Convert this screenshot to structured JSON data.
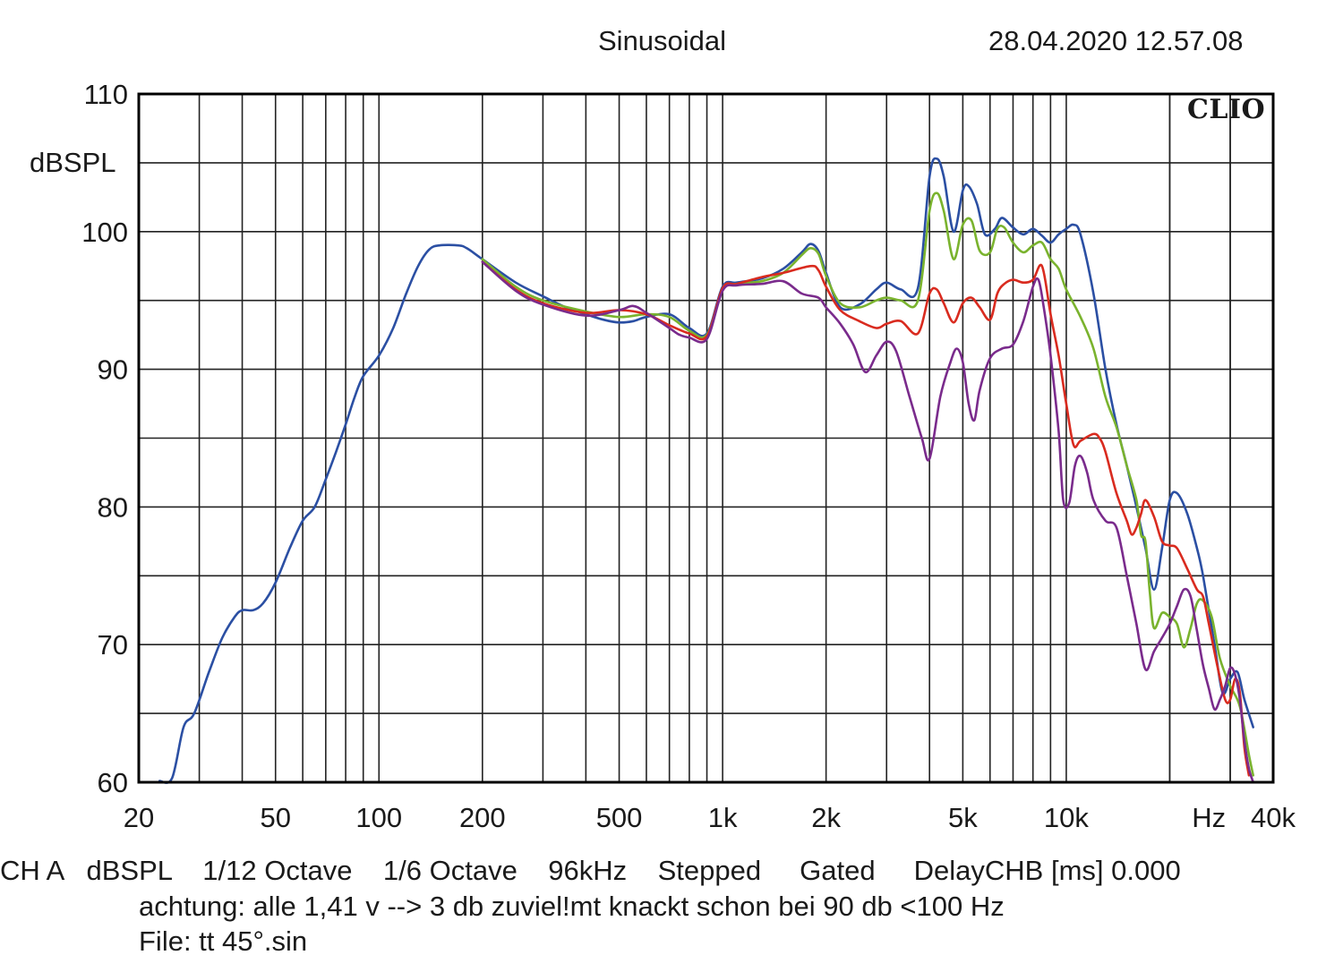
{
  "header": {
    "title": "Sinusoidal",
    "timestamp": "28.04.2020 12.57.08",
    "brand": "CLIO"
  },
  "footer": {
    "settings_line": "CH A   dBSPL    1/12 Octave    1/6 Octave    96kHz    Stepped     Gated     DelayCHB [ms] 0.000",
    "comment_line": "achtung: alle 1,41 v --> 3 db zuviel!mt knackt schon bei 90 db <100 Hz",
    "file_line": "File: tt 45°.sin"
  },
  "chart_data": {
    "type": "line",
    "xscale": "log",
    "xlim": [
      20,
      40000
    ],
    "ylim": [
      60,
      110
    ],
    "ylabel": "dBSPL",
    "xlabel": "Hz",
    "grid": true,
    "x_tick_labels": [
      {
        "value": 20,
        "label": "20"
      },
      {
        "value": 50,
        "label": "50"
      },
      {
        "value": 100,
        "label": "100"
      },
      {
        "value": 200,
        "label": "200"
      },
      {
        "value": 500,
        "label": "500"
      },
      {
        "value": 1000,
        "label": "1k"
      },
      {
        "value": 2000,
        "label": "2k"
      },
      {
        "value": 5000,
        "label": "5k"
      },
      {
        "value": 10000,
        "label": "10k"
      },
      {
        "value": 40000,
        "label": "40k"
      }
    ],
    "y_tick_labels": [
      "60",
      "70",
      "80",
      "90",
      "100",
      "110"
    ],
    "series": [
      {
        "color": "#2b4fa3",
        "points": [
          [
            23,
            60.1
          ],
          [
            25,
            60.3
          ],
          [
            27,
            64
          ],
          [
            29,
            65
          ],
          [
            32,
            68
          ],
          [
            35,
            70.5
          ],
          [
            38,
            72
          ],
          [
            40,
            72.5
          ],
          [
            43,
            72.5
          ],
          [
            46,
            73
          ],
          [
            50,
            74.5
          ],
          [
            55,
            77
          ],
          [
            60,
            79
          ],
          [
            65,
            80
          ],
          [
            70,
            82
          ],
          [
            75,
            84
          ],
          [
            80,
            86
          ],
          [
            85,
            88
          ],
          [
            90,
            89.5
          ],
          [
            100,
            91
          ],
          [
            110,
            93
          ],
          [
            120,
            95.5
          ],
          [
            130,
            97.5
          ],
          [
            140,
            98.7
          ],
          [
            150,
            99
          ],
          [
            170,
            99
          ],
          [
            180,
            98.8
          ],
          [
            200,
            98
          ],
          [
            250,
            96.3
          ],
          [
            300,
            95.3
          ],
          [
            350,
            94.5
          ],
          [
            400,
            94
          ],
          [
            450,
            93.6
          ],
          [
            500,
            93.4
          ],
          [
            550,
            93.5
          ],
          [
            600,
            93.8
          ],
          [
            700,
            94
          ],
          [
            800,
            93
          ],
          [
            900,
            92.6
          ],
          [
            1000,
            96
          ],
          [
            1100,
            96.3
          ],
          [
            1300,
            96.6
          ],
          [
            1500,
            97.3
          ],
          [
            1700,
            98.5
          ],
          [
            1800,
            99.1
          ],
          [
            1900,
            98.6
          ],
          [
            2000,
            97
          ],
          [
            2200,
            94.5
          ],
          [
            2500,
            94.7
          ],
          [
            2800,
            95.8
          ],
          [
            3000,
            96.3
          ],
          [
            3300,
            95.8
          ],
          [
            3700,
            95.9
          ],
          [
            4000,
            104
          ],
          [
            4200,
            105.3
          ],
          [
            4400,
            104
          ],
          [
            4700,
            100
          ],
          [
            5000,
            103
          ],
          [
            5200,
            103.3
          ],
          [
            5500,
            102
          ],
          [
            5800,
            99.8
          ],
          [
            6200,
            100.2
          ],
          [
            6500,
            101
          ],
          [
            7000,
            100.3
          ],
          [
            7500,
            99.8
          ],
          [
            8000,
            100.2
          ],
          [
            8500,
            99.7
          ],
          [
            9000,
            99.2
          ],
          [
            9500,
            99.8
          ],
          [
            10000,
            100.2
          ],
          [
            10500,
            100.5
          ],
          [
            11000,
            99.8
          ],
          [
            12000,
            95.5
          ],
          [
            13000,
            90
          ],
          [
            14000,
            86
          ],
          [
            15000,
            83
          ],
          [
            16000,
            80
          ],
          [
            17000,
            77
          ],
          [
            18000,
            74
          ],
          [
            19000,
            77
          ],
          [
            20000,
            80.5
          ],
          [
            21000,
            81
          ],
          [
            22500,
            79.5
          ],
          [
            24000,
            77
          ],
          [
            25000,
            75
          ],
          [
            27000,
            70
          ],
          [
            28500,
            66.5
          ],
          [
            30000,
            67.5
          ],
          [
            31500,
            68
          ],
          [
            33000,
            66
          ],
          [
            35000,
            64
          ]
        ]
      },
      {
        "color": "#7ab32e",
        "points": [
          [
            200,
            98
          ],
          [
            250,
            96
          ],
          [
            300,
            95
          ],
          [
            400,
            94.2
          ],
          [
            500,
            93.8
          ],
          [
            600,
            94
          ],
          [
            700,
            93.8
          ],
          [
            800,
            92.8
          ],
          [
            900,
            92.5
          ],
          [
            1000,
            95.8
          ],
          [
            1100,
            96.2
          ],
          [
            1300,
            96.4
          ],
          [
            1500,
            97
          ],
          [
            1700,
            98.3
          ],
          [
            1800,
            98.8
          ],
          [
            1900,
            98.4
          ],
          [
            2000,
            96.8
          ],
          [
            2200,
            94.8
          ],
          [
            2500,
            94.5
          ],
          [
            2800,
            95
          ],
          [
            3000,
            95.2
          ],
          [
            3300,
            95
          ],
          [
            3700,
            95
          ],
          [
            4000,
            101.5
          ],
          [
            4200,
            102.8
          ],
          [
            4400,
            101.5
          ],
          [
            4700,
            98
          ],
          [
            5000,
            100.5
          ],
          [
            5300,
            100.8
          ],
          [
            5600,
            98.6
          ],
          [
            6000,
            98.5
          ],
          [
            6300,
            100.2
          ],
          [
            6600,
            100.3
          ],
          [
            7000,
            99.2
          ],
          [
            7500,
            98.5
          ],
          [
            8000,
            99
          ],
          [
            8500,
            99.2
          ],
          [
            9000,
            98
          ],
          [
            9500,
            97.3
          ],
          [
            10000,
            95.8
          ],
          [
            11000,
            93.8
          ],
          [
            12000,
            91.5
          ],
          [
            13000,
            88
          ],
          [
            14000,
            85.8
          ],
          [
            15000,
            83
          ],
          [
            16000,
            80.5
          ],
          [
            16500,
            78
          ],
          [
            17000,
            77.5
          ],
          [
            17500,
            73.8
          ],
          [
            18000,
            71.2
          ],
          [
            19000,
            72.3
          ],
          [
            20000,
            72
          ],
          [
            21000,
            71.5
          ],
          [
            22000,
            69.8
          ],
          [
            23000,
            71.2
          ],
          [
            24000,
            73
          ],
          [
            25000,
            73.2
          ],
          [
            26500,
            72
          ],
          [
            28000,
            69
          ],
          [
            30000,
            67
          ],
          [
            32000,
            65.5
          ],
          [
            34000,
            62
          ],
          [
            35000,
            60.5
          ]
        ]
      },
      {
        "color": "#d92b1f",
        "points": [
          [
            200,
            97.8
          ],
          [
            250,
            95.8
          ],
          [
            300,
            94.8
          ],
          [
            400,
            94.1
          ],
          [
            500,
            94.3
          ],
          [
            600,
            94
          ],
          [
            700,
            93.2
          ],
          [
            800,
            92.6
          ],
          [
            900,
            92.4
          ],
          [
            1000,
            95.9
          ],
          [
            1100,
            96.2
          ],
          [
            1300,
            96.7
          ],
          [
            1500,
            97
          ],
          [
            1800,
            97.5
          ],
          [
            1900,
            97.2
          ],
          [
            2000,
            96
          ],
          [
            2200,
            94.3
          ],
          [
            2500,
            93.5
          ],
          [
            2800,
            93
          ],
          [
            3000,
            93.3
          ],
          [
            3300,
            93.5
          ],
          [
            3700,
            92.6
          ],
          [
            4000,
            95.5
          ],
          [
            4200,
            95.8
          ],
          [
            4400,
            94.8
          ],
          [
            4700,
            93.4
          ],
          [
            5000,
            94.8
          ],
          [
            5300,
            95.2
          ],
          [
            5600,
            94.5
          ],
          [
            6000,
            93.6
          ],
          [
            6300,
            95.5
          ],
          [
            6600,
            96.2
          ],
          [
            7000,
            96.5
          ],
          [
            7500,
            96.3
          ],
          [
            8000,
            96.5
          ],
          [
            8500,
            97.5
          ],
          [
            9000,
            94
          ],
          [
            9500,
            91
          ],
          [
            10000,
            87.5
          ],
          [
            10500,
            84.5
          ],
          [
            11000,
            84.8
          ],
          [
            12000,
            85.3
          ],
          [
            12500,
            85
          ],
          [
            13000,
            84
          ],
          [
            14000,
            81
          ],
          [
            15000,
            79
          ],
          [
            15500,
            78
          ],
          [
            16000,
            78.5
          ],
          [
            16500,
            79.5
          ],
          [
            17000,
            80.5
          ],
          [
            18000,
            79.3
          ],
          [
            19000,
            77.5
          ],
          [
            20000,
            77.2
          ],
          [
            21000,
            77
          ],
          [
            22500,
            75.5
          ],
          [
            24000,
            74
          ],
          [
            25000,
            73.5
          ],
          [
            26000,
            71.5
          ],
          [
            27500,
            68.5
          ],
          [
            29000,
            66
          ],
          [
            30000,
            66
          ],
          [
            31000,
            67.5
          ],
          [
            32000,
            66.5
          ],
          [
            33000,
            62.5
          ],
          [
            34000,
            60.5
          ]
        ]
      },
      {
        "color": "#7a2b8c",
        "points": [
          [
            200,
            97.8
          ],
          [
            250,
            95.7
          ],
          [
            300,
            94.7
          ],
          [
            400,
            93.9
          ],
          [
            500,
            94.3
          ],
          [
            550,
            94.6
          ],
          [
            600,
            94.1
          ],
          [
            700,
            93
          ],
          [
            750,
            92.5
          ],
          [
            800,
            92.3
          ],
          [
            900,
            92.2
          ],
          [
            1000,
            95.7
          ],
          [
            1100,
            96.1
          ],
          [
            1300,
            96.2
          ],
          [
            1500,
            96.4
          ],
          [
            1700,
            95.5
          ],
          [
            1900,
            95.2
          ],
          [
            2000,
            94.5
          ],
          [
            2200,
            93.3
          ],
          [
            2400,
            91.8
          ],
          [
            2600,
            89.8
          ],
          [
            2800,
            91
          ],
          [
            3000,
            92
          ],
          [
            3200,
            91.3
          ],
          [
            3500,
            88
          ],
          [
            3800,
            85
          ],
          [
            4000,
            83.5
          ],
          [
            4300,
            88
          ],
          [
            4600,
            90.5
          ],
          [
            4800,
            91.5
          ],
          [
            5000,
            90.5
          ],
          [
            5200,
            87.5
          ],
          [
            5400,
            86.3
          ],
          [
            5600,
            88.5
          ],
          [
            6000,
            90.8
          ],
          [
            6500,
            91.5
          ],
          [
            7000,
            91.8
          ],
          [
            7500,
            93.5
          ],
          [
            8000,
            96
          ],
          [
            8300,
            96.5
          ],
          [
            8600,
            94.5
          ],
          [
            9000,
            91
          ],
          [
            9500,
            85.5
          ],
          [
            9800,
            80.5
          ],
          [
            10200,
            80.3
          ],
          [
            10600,
            83
          ],
          [
            11000,
            83.7
          ],
          [
            11500,
            82.5
          ],
          [
            12000,
            80.5
          ],
          [
            13000,
            79
          ],
          [
            14000,
            78.5
          ],
          [
            15000,
            75
          ],
          [
            16000,
            71.5
          ],
          [
            17000,
            68.2
          ],
          [
            18000,
            69.5
          ],
          [
            19000,
            70.5
          ],
          [
            20000,
            71.5
          ],
          [
            21000,
            72.8
          ],
          [
            22000,
            74
          ],
          [
            23000,
            73.5
          ],
          [
            24000,
            71
          ],
          [
            25000,
            68.5
          ],
          [
            26000,
            66.8
          ],
          [
            27000,
            65.3
          ],
          [
            28000,
            66
          ],
          [
            29000,
            67
          ],
          [
            30000,
            68.3
          ],
          [
            31000,
            67.8
          ],
          [
            32000,
            66
          ],
          [
            33000,
            63
          ],
          [
            34000,
            61
          ],
          [
            35000,
            60
          ]
        ]
      }
    ]
  }
}
